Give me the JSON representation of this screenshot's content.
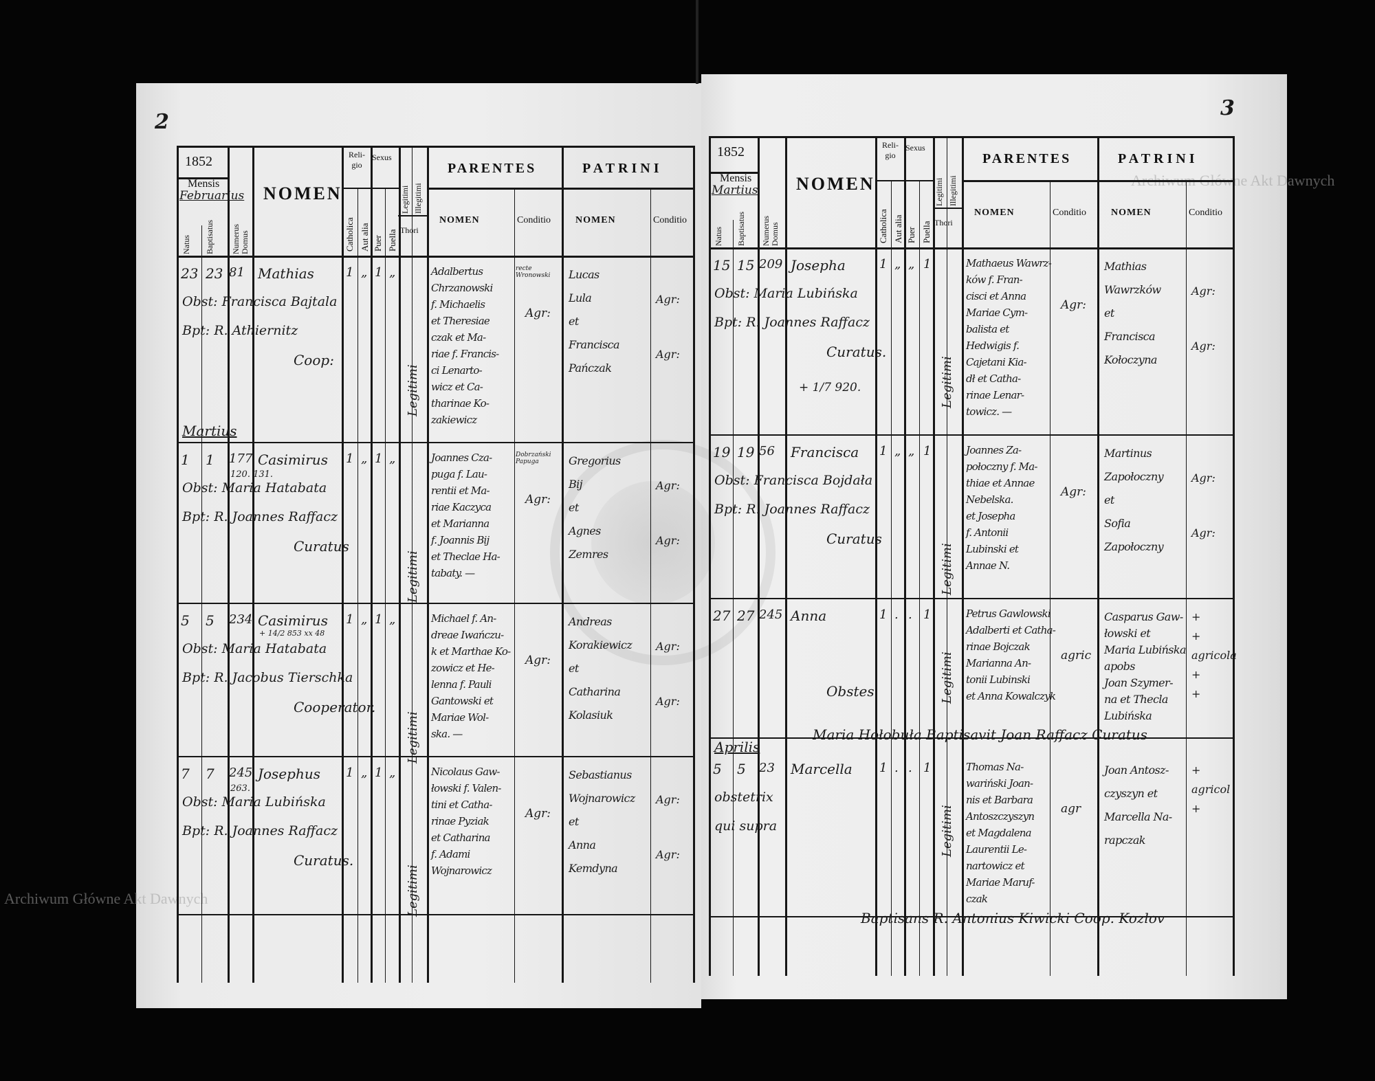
{
  "watermark": {
    "text_top": "Archiwum Główne Akt Dawnych",
    "text_bottom": "Archiwum Główne Akt Dawnych"
  },
  "stamp": {
    "text": "ARCHIWUM GŁÓWNE AKT DAWNYCH"
  },
  "header_labels": {
    "mensis": "Mensis",
    "natus": "Natus",
    "baptisatus": "Baptisatus",
    "numerus_domus": "Numerus Domus",
    "nomen": "NOMEN",
    "religio": "Reli-gio",
    "catholica": "Catholica",
    "aut_alia": "Aut alia",
    "sexus": "Sexus",
    "puer": "Puer",
    "puella": "Puella",
    "legitimi": "Legitimi",
    "illegitimi": "Illegitimi",
    "thori": "Thori",
    "parentes": "PARENTES",
    "patrini": "PATRINI",
    "sub_nomen": "NOMEN",
    "conditio": "Conditio"
  },
  "pages": [
    {
      "page_number": "2",
      "year": "1852",
      "month": "Februarius",
      "month_breaks": [
        {
          "before_entry": 1,
          "label": "Martius"
        }
      ],
      "entries": [
        {
          "natus": "23",
          "baptisatus": "23",
          "domus": "81",
          "domus_note": "",
          "nomen": "Mathias",
          "nomen_note": "",
          "catholica": "1",
          "aut_alia": "„",
          "puer": "1",
          "puella": "„",
          "legitimi": "Legitimi",
          "extra": [
            "Obst: Francisca Bajtala",
            "Bpt: R. Athiernitz"
          ],
          "signature": "Coop:",
          "parentes": [
            "Adalbertus",
            "Chrzanowski",
            "f. Michaelis",
            "et Theresiae",
            "czak et Ma-",
            "riae f. Francis-",
            "ci Lenarto-",
            "wicz et Ca-",
            "tharinae Ko-",
            "zakiewicz"
          ],
          "parentes_note": "recte Wronowski",
          "parentes_conditio": "Agr:",
          "patrini": [
            "Lucas",
            "Lula",
            "et",
            "Francisca",
            "Pańczak"
          ],
          "patrini_conditio": [
            "Agr:",
            "Agr:"
          ]
        },
        {
          "natus": "1",
          "baptisatus": "1",
          "domus": "177",
          "domus_note": "120. 131.",
          "nomen": "Casimirus",
          "nomen_note": "",
          "catholica": "1",
          "aut_alia": "„",
          "puer": "1",
          "puella": "„",
          "legitimi": "Legitimi",
          "extra": [
            "Obst: Maria Hatabata",
            "Bpt: R. Joannes Raffacz"
          ],
          "signature": "Curatus",
          "parentes": [
            "Joannes Cza-",
            "puga f. Lau-",
            "rentii et Ma-",
            "riae Kaczyca",
            "et Marianna",
            "f. Joannis Bij",
            "et Theclae Ha-",
            "tabaty. —"
          ],
          "parentes_note": "Dobrzański Papuga",
          "parentes_conditio": "Agr:",
          "patrini": [
            "Gregorius",
            "Bij",
            "et",
            "Agnes",
            "Zemres"
          ],
          "patrini_conditio": [
            "Agr:",
            "Agr:"
          ]
        },
        {
          "natus": "5",
          "baptisatus": "5",
          "domus": "234",
          "domus_note": "",
          "nomen": "Casimirus",
          "nomen_note": "+ 14/2 853 xx 48",
          "catholica": "1",
          "aut_alia": "„",
          "puer": "1",
          "puella": "„",
          "legitimi": "Legitimi",
          "extra": [
            "Obst: Maria Hatabata",
            "Bpt: R. Jacobus Tierschka"
          ],
          "signature": "Cooperator.",
          "parentes": [
            "Michael f. An-",
            "dreae Iwańczu-",
            "k et Marthae Ko-",
            "zowicz et He-",
            "lenna f. Pauli",
            "Gantowski et",
            "Mariae Wol-",
            "ska. —"
          ],
          "parentes_note": "",
          "parentes_conditio": "Agr:",
          "patrini": [
            "Andreas",
            "Korakiewicz",
            "et",
            "Catharina",
            "Kolasiuk"
          ],
          "patrini_conditio": [
            "Agr:",
            "Agr:"
          ]
        },
        {
          "natus": "7",
          "baptisatus": "7",
          "domus": "245",
          "domus_note": "263.",
          "nomen": "Josephus",
          "nomen_note": "",
          "catholica": "1",
          "aut_alia": "„",
          "puer": "1",
          "puella": "„",
          "legitimi": "Legitimi",
          "extra": [
            "Obst: Maria Lubińska",
            "Bpt: R. Joannes Raffacz"
          ],
          "signature": "Curatus.",
          "parentes": [
            "Nicolaus Gaw-",
            "łowski f. Valen-",
            "tini et Catha-",
            "rinae Pyziak",
            "et Catharina",
            "f. Adami",
            "Wojnarowicz"
          ],
          "parentes_note": "",
          "parentes_conditio": "Agr:",
          "patrini": [
            "Sebastianus",
            "Wojnarowicz",
            "et",
            "Anna",
            "Kemdyna"
          ],
          "patrini_conditio": [
            "Agr:",
            "Agr:"
          ]
        }
      ],
      "notes": []
    },
    {
      "page_number": "3",
      "year": "1852",
      "month": "Martius",
      "month_breaks": [
        {
          "before_entry": 3,
          "label": "Aprilis"
        }
      ],
      "entries": [
        {
          "natus": "15",
          "baptisatus": "15",
          "domus": "209",
          "domus_note": "",
          "nomen": "Josepha",
          "nomen_note": "",
          "catholica": "1",
          "aut_alia": "„",
          "puer": "„",
          "puella": "1",
          "legitimi": "Legitimi",
          "extra": [
            "Obst: Maria Lubińska",
            "Bpt: R. Joannes Raffacz"
          ],
          "signature": "Curatus.",
          "death_note": "+ 1/7 920.",
          "parentes": [
            "Mathaeus Wawrz-",
            "ków f. Fran-",
            "cisci et Anna",
            "Mariae Cym-",
            "balista et",
            "Hedwigis f.",
            "Cajetani Kia-",
            "dł et Catha-",
            "rinae Lenar-",
            "towicz. —"
          ],
          "parentes_note": "",
          "parentes_conditio": "Agr:",
          "patrini": [
            "Mathias",
            "Wawrzków",
            "et",
            "Francisca",
            "Kołoczyna"
          ],
          "patrini_conditio": [
            "Agr:",
            "Agr:"
          ]
        },
        {
          "natus": "19",
          "baptisatus": "19",
          "domus": "56",
          "domus_note": "",
          "nomen": "Francisca",
          "nomen_note": "",
          "catholica": "1",
          "aut_alia": "„",
          "puer": "„",
          "puella": "1",
          "legitimi": "Legitimi",
          "extra": [
            "Obst: Francisca Bojdała",
            "Bpt: R. Joannes Raffacz"
          ],
          "signature": "Curatus",
          "parentes": [
            "Joannes Za-",
            "połoczny f. Ma-",
            "thiae et Annae",
            "Nebelska.",
            "et Josepha",
            "f. Antonii",
            "Lubinski et",
            "Annae N."
          ],
          "parentes_note": "",
          "parentes_conditio": "Agr:",
          "patrini": [
            "Martinus",
            "Zapołoczny",
            "et",
            "Sofia",
            "Zapołoczny"
          ],
          "patrini_conditio": [
            "Agr:",
            "Agr:"
          ]
        },
        {
          "natus": "27",
          "baptisatus": "27",
          "domus": "245",
          "domus_note": "",
          "nomen": "Anna",
          "nomen_note": "",
          "catholica": "1",
          "aut_alia": ".",
          "puer": ".",
          "puella": "1",
          "legitimi": "Legitimi",
          "extra": [],
          "signature": "Obstes",
          "parentes": [
            "Petrus Gawlowski",
            "Adalberti et Catha-",
            "rinae Bojczak",
            "Marianna An-",
            "tonii Lubinski",
            "et Anna Kowalczyk"
          ],
          "parentes_note": "",
          "parentes_conditio": "agric",
          "patrini": [
            "Casparus Gaw-",
            "łowski et",
            "Maria Lubińska",
            "apobs",
            "Joan Szymer-",
            "na et Thecla",
            "Lubińska"
          ],
          "patrini_conditio": [
            "+",
            "+",
            "agricola",
            "+",
            "+"
          ]
        },
        {
          "natus": "5",
          "baptisatus": "5",
          "domus": "23",
          "domus_note": "",
          "nomen": "Marcella",
          "nomen_note": "",
          "catholica": "1",
          "aut_alia": ".",
          "puer": ".",
          "puella": "1",
          "legitimi": "Legitimi",
          "extra": [
            "obstetrix",
            "qui supra"
          ],
          "signature": "",
          "parentes": [
            "Thomas Na-",
            "wariński Joan-",
            "nis et Barbara",
            "Antoszczyszyn",
            "et Magdalena",
            "Laurentii Le-",
            "nartowicz et",
            "Mariae Maruf-",
            "czak"
          ],
          "parentes_note": "",
          "parentes_conditio": "agr",
          "patrini": [
            "Joan Antosz-",
            "czyszyn et",
            "Marcella Na-",
            "rapczak"
          ],
          "patrini_conditio": [
            "+",
            "agricol",
            "+"
          ]
        }
      ],
      "notes": [
        {
          "text": "Maria Hołobuła Baptisavit Joan Raffacz Curatus"
        },
        {
          "text": "Baptisans R. Antonius Kiwicki Coop. Kozlov"
        }
      ]
    }
  ]
}
